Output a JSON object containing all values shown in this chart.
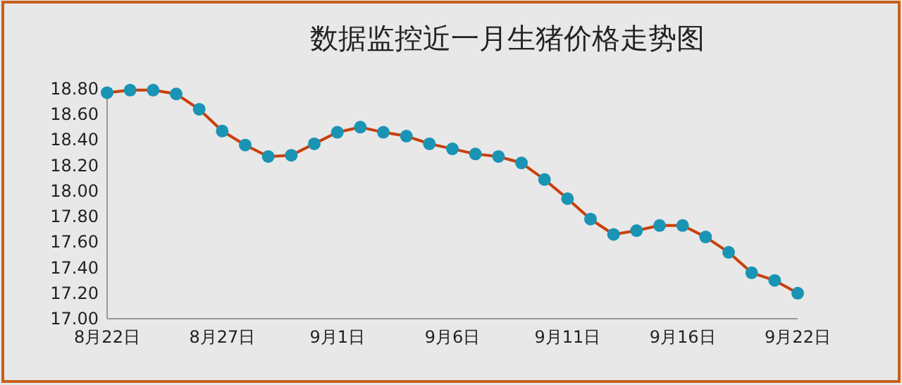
{
  "chart_data": {
    "type": "line",
    "title": "数据监控近一月生猪价格走势图",
    "categories": [
      "8月22日",
      null,
      null,
      null,
      null,
      "8月27日",
      null,
      null,
      null,
      null,
      "9月1日",
      null,
      null,
      null,
      null,
      "9月6日",
      null,
      null,
      null,
      null,
      "9月11日",
      null,
      null,
      null,
      null,
      "9月16日",
      null,
      null,
      null,
      null,
      "9月22日"
    ],
    "series": [
      {
        "color": "#c8400c",
        "values": [
          18.77,
          18.79,
          18.79,
          18.76,
          18.64,
          18.47,
          18.36,
          18.27,
          18.28,
          18.37,
          18.46,
          18.5,
          18.46,
          18.43,
          18.37,
          18.33,
          18.29,
          18.27,
          18.22,
          18.09,
          17.94,
          17.78,
          17.66,
          17.69,
          17.73,
          17.73,
          17.64,
          17.52,
          17.36,
          17.3,
          17.2
        ]
      }
    ],
    "ylim": [
      17.0,
      18.8
    ],
    "yticks": [
      {
        "value": 17.0,
        "label": "17.00"
      },
      {
        "value": 17.2,
        "label": "17.20"
      },
      {
        "value": 17.4,
        "label": "17.40"
      },
      {
        "value": 17.6,
        "label": "17.60"
      },
      {
        "value": 17.8,
        "label": "17.80"
      },
      {
        "value": 18.0,
        "label": "18.00"
      },
      {
        "value": 18.2,
        "label": "18.20"
      },
      {
        "value": 18.4,
        "label": "18.40"
      },
      {
        "value": 18.6,
        "label": "18.60"
      },
      {
        "value": 18.8,
        "label": "18.80"
      }
    ],
    "marker": "circle",
    "grid": false
  }
}
